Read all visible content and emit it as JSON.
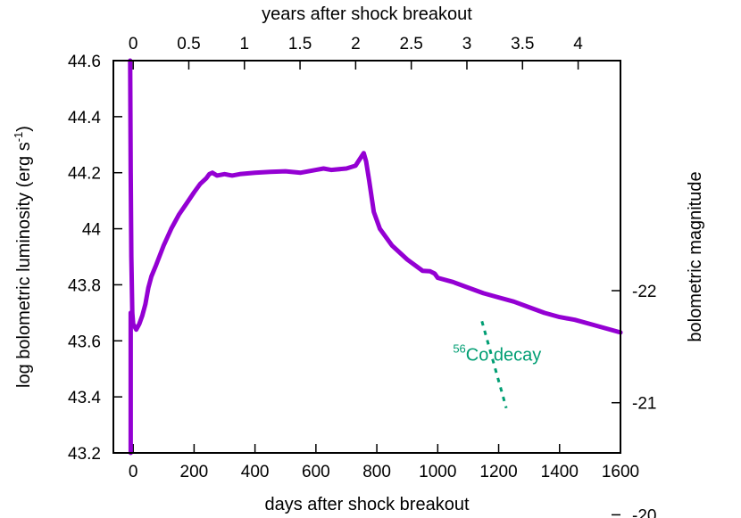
{
  "chart_data": {
    "type": "line",
    "title": "",
    "xlabel": "days after shock breakout",
    "ylabel": "log bolometric luminosity (erg s",
    "ylabel_sup": "-1",
    "ylabel_close": ")",
    "x2label": "years after shock breakout",
    "y2label": "bolometric magnitude",
    "xlim": [
      -65,
      1600
    ],
    "ylim": [
      43.2,
      44.6
    ],
    "xticks": [
      0,
      200,
      400,
      600,
      800,
      1000,
      1200,
      1400,
      1600
    ],
    "yticks": [
      43.2,
      43.4,
      43.6,
      43.8,
      44,
      44.2,
      44.4,
      44.6
    ],
    "ytick_labels": [
      "43.2",
      "43.4",
      "43.6",
      "43.8",
      "44",
      "44.2",
      "44.4",
      "44.6"
    ],
    "x2ticks": [
      0,
      0.5,
      1,
      1.5,
      2,
      2.5,
      3,
      3.5,
      4
    ],
    "x2tick_labels": [
      "0",
      "0.5",
      "1",
      "1.5",
      "2",
      "2.5",
      "3",
      "3.5",
      "4"
    ],
    "y2ticks": [
      -20,
      -21,
      -22
    ],
    "y2tick_labels": [
      "-20",
      "-21",
      "-22"
    ],
    "grid": false,
    "series": [
      {
        "color": "#9400d3",
        "style": "solid",
        "points": [
          [
            -10,
            44.6
          ],
          [
            -8,
            44.2
          ],
          [
            -6,
            43.9
          ],
          [
            -3,
            43.7
          ],
          [
            0,
            43.66
          ],
          [
            5,
            43.65
          ],
          [
            10,
            43.64
          ],
          [
            20,
            43.66
          ],
          [
            30,
            43.69
          ],
          [
            40,
            43.73
          ],
          [
            50,
            43.79
          ],
          [
            60,
            43.83
          ],
          [
            75,
            43.87
          ],
          [
            100,
            43.94
          ],
          [
            125,
            44.0
          ],
          [
            150,
            44.05
          ],
          [
            175,
            44.09
          ],
          [
            200,
            44.13
          ],
          [
            220,
            44.16
          ],
          [
            240,
            44.18
          ],
          [
            250,
            44.195
          ],
          [
            260,
            44.2
          ],
          [
            275,
            44.19
          ],
          [
            300,
            44.195
          ],
          [
            325,
            44.19
          ],
          [
            350,
            44.195
          ],
          [
            400,
            44.2
          ],
          [
            450,
            44.203
          ],
          [
            500,
            44.205
          ],
          [
            550,
            44.2
          ],
          [
            600,
            44.21
          ],
          [
            625,
            44.215
          ],
          [
            650,
            44.21
          ],
          [
            700,
            44.215
          ],
          [
            730,
            44.225
          ],
          [
            745,
            44.25
          ],
          [
            757,
            44.27
          ],
          [
            765,
            44.24
          ],
          [
            775,
            44.17
          ],
          [
            790,
            44.06
          ],
          [
            810,
            44.0
          ],
          [
            850,
            43.94
          ],
          [
            900,
            43.89
          ],
          [
            950,
            43.85
          ],
          [
            975,
            43.848
          ],
          [
            990,
            43.84
          ],
          [
            1000,
            43.825
          ],
          [
            1050,
            43.81
          ],
          [
            1100,
            43.79
          ],
          [
            1150,
            43.77
          ],
          [
            1200,
            43.755
          ],
          [
            1250,
            43.74
          ],
          [
            1300,
            43.72
          ],
          [
            1350,
            43.7
          ],
          [
            1400,
            43.685
          ],
          [
            1450,
            43.675
          ],
          [
            1500,
            43.66
          ],
          [
            1550,
            43.645
          ],
          [
            1600,
            43.63
          ]
        ]
      },
      {
        "color": "#9400d3",
        "style": "solid",
        "points": [
          [
            -8,
            43.2
          ],
          [
            -8,
            43.7
          ]
        ]
      },
      {
        "name": "Co decay",
        "name_sup": "56",
        "color": "#009e73",
        "style": "dashed",
        "points": [
          [
            1145,
            43.67
          ],
          [
            1225,
            43.36
          ]
        ]
      }
    ],
    "annotations": [
      {
        "sup": "56",
        "text": "Co decay",
        "x": 1195,
        "y": 43.53,
        "color": "#009e73"
      }
    ]
  }
}
